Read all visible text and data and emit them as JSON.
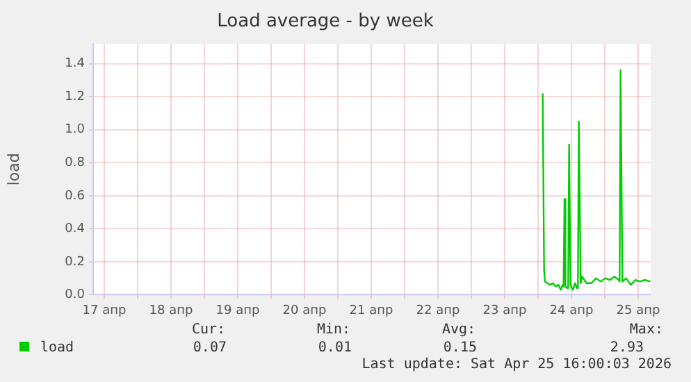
{
  "chart_data": {
    "type": "line",
    "title": "Load average - by week",
    "ylabel": "load",
    "xlim": [
      "2026-04-17T08:00",
      "2026-04-25T16:30"
    ],
    "xticks": [
      {
        "value": "2026-04-17T12:00",
        "label": "17 апр"
      },
      {
        "value": "2026-04-18T00:00",
        "label": null
      },
      {
        "value": "2026-04-18T12:00",
        "label": "18 апр"
      },
      {
        "value": "2026-04-19T00:00",
        "label": null
      },
      {
        "value": "2026-04-19T12:00",
        "label": "19 апр"
      },
      {
        "value": "2026-04-20T00:00",
        "label": null
      },
      {
        "value": "2026-04-20T12:00",
        "label": "20 апр"
      },
      {
        "value": "2026-04-21T00:00",
        "label": null
      },
      {
        "value": "2026-04-21T12:00",
        "label": "21 апр"
      },
      {
        "value": "2026-04-22T00:00",
        "label": null
      },
      {
        "value": "2026-04-22T12:00",
        "label": "22 апр"
      },
      {
        "value": "2026-04-23T00:00",
        "label": null
      },
      {
        "value": "2026-04-23T12:00",
        "label": "23 апр"
      },
      {
        "value": "2026-04-24T00:00",
        "label": null
      },
      {
        "value": "2026-04-24T12:00",
        "label": "24 апр"
      },
      {
        "value": "2026-04-25T00:00",
        "label": null
      },
      {
        "value": "2026-04-25T12:00",
        "label": "25 апр"
      }
    ],
    "ylim": [
      0,
      1.52
    ],
    "yticks": [
      {
        "value": 0,
        "label": "0.0"
      },
      {
        "value": 0.2,
        "label": "0.2"
      },
      {
        "value": 0.4,
        "label": "0.4"
      },
      {
        "value": 0.6,
        "label": "0.6"
      },
      {
        "value": 0.8,
        "label": "0.8"
      },
      {
        "value": 1,
        "label": "1.0"
      },
      {
        "value": 1.2,
        "label": "1.2"
      },
      {
        "value": 1.4,
        "label": "1.4"
      }
    ],
    "grid": true,
    "legend": "bottom",
    "marker": "none",
    "line_style": "solid",
    "x": [
      "2026-04-24T01:40",
      "2026-04-24T02:10",
      "2026-04-24T02:30",
      "2026-04-24T04:20",
      "2026-04-24T05:20",
      "2026-04-24T06:20",
      "2026-04-24T07:20",
      "2026-04-24T08:10",
      "2026-04-24T08:50",
      "2026-04-24T09:10",
      "2026-04-24T09:30",
      "2026-04-24T09:50",
      "2026-04-24T10:30",
      "2026-04-24T10:50",
      "2026-04-24T11:10",
      "2026-04-24T11:40",
      "2026-04-24T12:30",
      "2026-04-24T13:20",
      "2026-04-24T14:00",
      "2026-04-24T14:20",
      "2026-04-24T14:40",
      "2026-04-24T15:20",
      "2026-04-24T15:50",
      "2026-04-24T17:30",
      "2026-04-24T19:10",
      "2026-04-24T20:50",
      "2026-04-24T22:30",
      "2026-04-25T00:10",
      "2026-04-25T01:50",
      "2026-04-25T03:30",
      "2026-04-25T05:00",
      "2026-04-25T05:20",
      "2026-04-25T05:40",
      "2026-04-25T06:20",
      "2026-04-25T07:40",
      "2026-04-25T09:20",
      "2026-04-25T11:00",
      "2026-04-25T12:40",
      "2026-04-25T14:20",
      "2026-04-25T16:20"
    ],
    "series": [
      {
        "name": "load",
        "color": "#00cc00",
        "values": [
          1.22,
          0.15,
          0.08,
          0.06,
          0.07,
          0.05,
          0.06,
          0.03,
          0.06,
          0.05,
          0.58,
          0.05,
          0.04,
          0.06,
          0.91,
          0.06,
          0.03,
          0.07,
          0.04,
          0.06,
          1.05,
          0.07,
          0.11,
          0.07,
          0.07,
          0.1,
          0.08,
          0.1,
          0.09,
          0.11,
          0.09,
          0.08,
          1.36,
          0.08,
          0.1,
          0.06,
          0.09,
          0.08,
          0.09,
          0.08
        ]
      }
    ],
    "annotations": [
      "Cur:",
      "Min:",
      "Avg:",
      "Max:",
      "0.07",
      "0.01",
      "0.15",
      "2.93",
      "Last update: Sat Apr 25 16:00:03 2026"
    ]
  }
}
